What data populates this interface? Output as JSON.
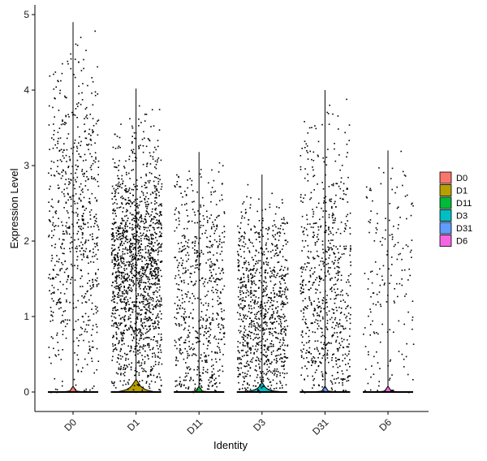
{
  "chart_data": {
    "type": "violin",
    "categories": [
      "D0",
      "D1",
      "D11",
      "D3",
      "D31",
      "D6"
    ],
    "xlabel": "Identity",
    "ylabel": "Expression Level",
    "ylim": [
      -0.25,
      5.15
    ],
    "yticks": [
      0,
      1,
      2,
      3,
      4,
      5
    ],
    "grid": false,
    "legend": {
      "position": "right",
      "entries": [
        "D0",
        "D1",
        "D11",
        "D3",
        "D31",
        "D6"
      ]
    },
    "colors": [
      "#F8766D",
      "#B79F00",
      "#00BA38",
      "#00BFC4",
      "#619CFF",
      "#F564E3"
    ],
    "series": [
      {
        "category": "D0",
        "max": 4.9,
        "zero_bulge": 0.0,
        "points": 700,
        "density": [
          [
            0.2,
            0.3
          ],
          [
            0.8,
            0.6
          ],
          [
            1.5,
            1.0
          ],
          [
            2.3,
            1.3
          ],
          [
            3.0,
            0.9
          ],
          [
            3.8,
            0.5
          ],
          [
            4.4,
            0.2
          ]
        ]
      },
      {
        "category": "D1",
        "max": 4.02,
        "zero_bulge": 0.08,
        "points": 1600,
        "density": [
          [
            0.1,
            0.3
          ],
          [
            0.5,
            0.6
          ],
          [
            1.0,
            1.0
          ],
          [
            1.6,
            1.4
          ],
          [
            2.0,
            1.3
          ],
          [
            2.5,
            0.7
          ],
          [
            3.0,
            0.3
          ],
          [
            3.6,
            0.08
          ]
        ]
      },
      {
        "category": "D11",
        "max": 3.18,
        "zero_bulge": 0.0,
        "points": 650,
        "density": [
          [
            0.2,
            0.8
          ],
          [
            0.7,
            1.0
          ],
          [
            1.3,
            0.9
          ],
          [
            1.9,
            0.9
          ],
          [
            2.4,
            0.6
          ],
          [
            2.9,
            0.2
          ],
          [
            3.1,
            0.05
          ]
        ]
      },
      {
        "category": "D3",
        "max": 2.88,
        "zero_bulge": 0.05,
        "points": 950,
        "density": [
          [
            0.2,
            0.8
          ],
          [
            0.6,
            1.0
          ],
          [
            1.1,
            1.2
          ],
          [
            1.5,
            1.1
          ],
          [
            1.9,
            0.8
          ],
          [
            2.3,
            0.4
          ],
          [
            2.6,
            0.1
          ]
        ]
      },
      {
        "category": "D31",
        "max": 4.0,
        "zero_bulge": 0.0,
        "points": 720,
        "density": [
          [
            0.2,
            0.7
          ],
          [
            0.6,
            1.0
          ],
          [
            1.1,
            1.0
          ],
          [
            1.6,
            0.9
          ],
          [
            2.1,
            0.8
          ],
          [
            2.7,
            0.5
          ],
          [
            3.4,
            0.15
          ],
          [
            3.8,
            0.05
          ]
        ]
      },
      {
        "category": "D6",
        "max": 3.2,
        "zero_bulge": 0.0,
        "points": 180,
        "density": [
          [
            0.3,
            0.5
          ],
          [
            0.8,
            0.6
          ],
          [
            1.3,
            0.7
          ],
          [
            1.8,
            0.8
          ],
          [
            2.3,
            0.6
          ],
          [
            2.8,
            0.3
          ],
          [
            3.2,
            0.05
          ]
        ]
      }
    ]
  }
}
